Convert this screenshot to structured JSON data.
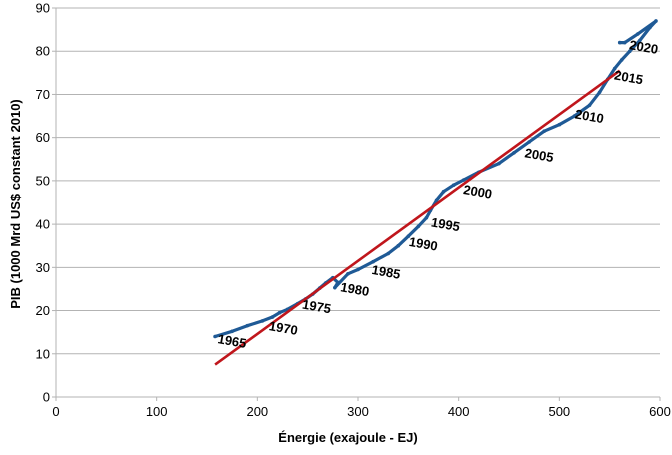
{
  "chart_data": {
    "type": "scatter",
    "title": "",
    "xlabel": "Énergie (exajoule - EJ)",
    "ylabel": "PIB (1000 Mrd US$ constant 2010)",
    "xlim": [
      0,
      600
    ],
    "ylim": [
      0,
      90
    ],
    "x_ticks": [
      "0",
      "100",
      "200",
      "300",
      "400",
      "500",
      "600"
    ],
    "y_ticks": [
      "0",
      "10",
      "20",
      "30",
      "40",
      "50",
      "60",
      "70",
      "80",
      "90"
    ],
    "grid": "horizontal",
    "legend": "none",
    "colors": {
      "series": "#1f5a96",
      "trend": "#c0161c",
      "grid": "#b3b3b3"
    },
    "series": [
      {
        "x": [
          158,
          175,
          190,
          205,
          215,
          222,
          230,
          240,
          248,
          255,
          262,
          268,
          275,
          280,
          277,
          290,
          300,
          315,
          330,
          340,
          350,
          360,
          368,
          372,
          378,
          385,
          395,
          405,
          420,
          440,
          455,
          470,
          485,
          500,
          515,
          530,
          540,
          548,
          555,
          562,
          570,
          580,
          590,
          596,
          578,
          565,
          560
        ],
        "y": [
          14,
          15.2,
          16.5,
          17.6,
          18.5,
          19.5,
          20.3,
          21.6,
          22.7,
          23.8,
          25.2,
          26.4,
          27.6,
          26.5,
          25.3,
          28.5,
          29.5,
          31.3,
          33.2,
          35,
          37.2,
          39.5,
          41.5,
          43.2,
          45.5,
          47.5,
          49,
          50.2,
          52,
          54,
          56.5,
          59,
          61.5,
          63,
          65,
          67.5,
          70.5,
          73.5,
          76,
          78,
          80,
          82.5,
          85.5,
          87,
          84,
          82,
          82
        ]
      },
      {
        "x": [
          158,
          560
        ],
        "y": [
          7.5,
          75.5
        ]
      }
    ],
    "annotations": [
      {
        "text": "1965",
        "x": 160,
        "y": 12.5
      },
      {
        "text": "1970",
        "x": 211,
        "y": 15.5
      },
      {
        "text": "1975",
        "x": 244,
        "y": 20.5
      },
      {
        "text": "1980",
        "x": 282,
        "y": 24.5
      },
      {
        "text": "1985",
        "x": 313,
        "y": 28.5
      },
      {
        "text": "1990",
        "x": 350,
        "y": 35.0
      },
      {
        "text": "1995",
        "x": 372,
        "y": 39.5
      },
      {
        "text": "2000",
        "x": 404,
        "y": 47.0
      },
      {
        "text": "2005",
        "x": 465,
        "y": 55.5
      },
      {
        "text": "2010",
        "x": 515,
        "y": 64.5
      },
      {
        "text": "2015",
        "x": 554,
        "y": 73.5
      },
      {
        "text": "2020",
        "x": 569,
        "y": 80.5
      }
    ]
  }
}
